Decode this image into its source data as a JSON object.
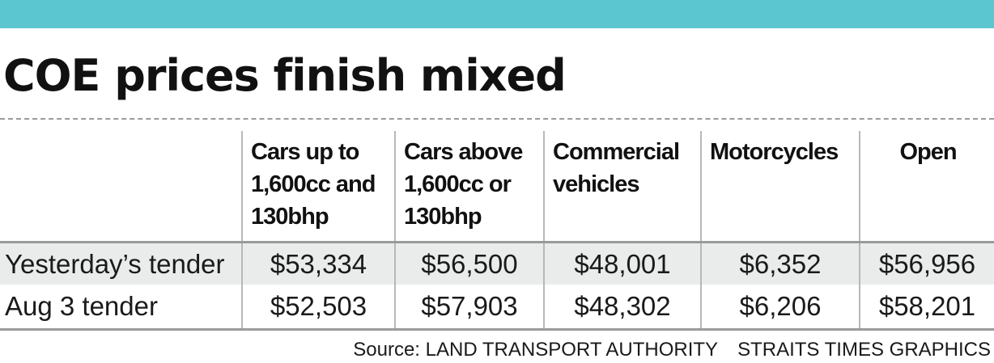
{
  "header": {
    "title": "COE prices finish mixed"
  },
  "colors": {
    "top_bar": "#5bc6d0",
    "highlight_row": "#e9ecea",
    "rule": "#9a9a9a"
  },
  "chart_data": {
    "type": "table",
    "title": "COE prices finish mixed",
    "columns": [
      "Cars up to 1,600cc and 130bhp",
      "Cars above 1,600cc or 130bhp",
      "Commercial vehicles",
      "Motorcycles",
      "Open"
    ],
    "rows": [
      {
        "label": "Yesterday’s tender",
        "values": [
          "$53,334",
          "$56,500",
          "$48,001",
          "$6,352",
          "$56,956"
        ]
      },
      {
        "label": "Aug 3 tender",
        "values": [
          "$52,503",
          "$57,903",
          "$48,302",
          "$6,206",
          "$58,201"
        ]
      }
    ]
  },
  "footer": {
    "source": "Source: LAND TRANSPORT AUTHORITY",
    "credit": "STRAITS TIMES GRAPHICS"
  }
}
